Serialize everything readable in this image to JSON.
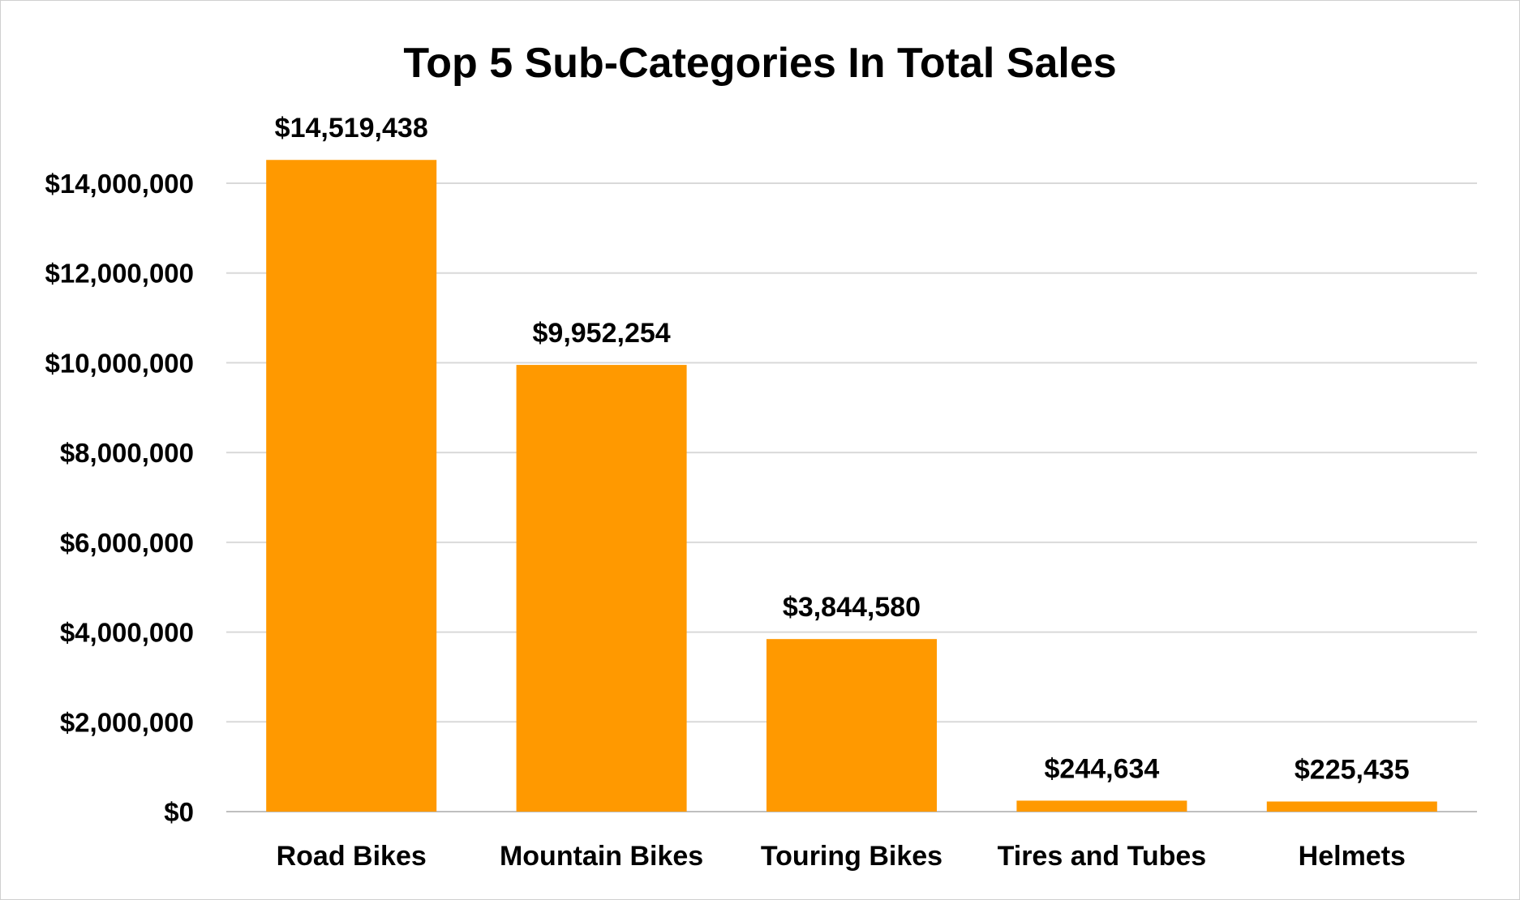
{
  "chart_data": {
    "type": "bar",
    "title": "Top 5 Sub-Categories In Total Sales",
    "xlabel": "",
    "ylabel": "",
    "categories": [
      "Road Bikes",
      "Mountain Bikes",
      "Touring Bikes",
      "Tires and Tubes",
      "Helmets"
    ],
    "values": [
      14519438,
      9952254,
      3844580,
      244634,
      225435
    ],
    "data_labels": [
      "$14,519,438",
      "$9,952,254",
      "$3,844,580",
      "$244,634",
      "$225,435"
    ],
    "ylim": [
      0,
      14000000
    ],
    "yticks": [
      0,
      2000000,
      4000000,
      6000000,
      8000000,
      10000000,
      12000000,
      14000000
    ],
    "ytick_labels": [
      "$0",
      "$2,000,000",
      "$4,000,000",
      "$6,000,000",
      "$8,000,000",
      "$10,000,000",
      "$12,000,000",
      "$14,000,000"
    ],
    "grid": true,
    "legend": "none",
    "bar_color": "#FF9900"
  }
}
